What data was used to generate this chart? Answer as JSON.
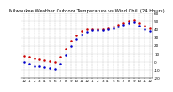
{
  "title": "Milwaukee Weather Outdoor Temperature vs Wind Chill (24 Hours)",
  "time_labels": [
    "12",
    "1",
    "2",
    "3",
    "4",
    "5",
    "6",
    "7",
    "8",
    "9",
    "10",
    "11",
    "12",
    "1",
    "2",
    "3",
    "4",
    "5",
    "6",
    "7",
    "8",
    "9",
    "10",
    "11",
    "12"
  ],
  "temp_values": [
    8,
    6,
    4,
    3,
    2,
    1,
    0,
    6,
    16,
    26,
    33,
    38,
    40,
    41,
    41,
    41,
    42,
    44,
    46,
    48,
    50,
    51,
    48,
    45,
    42
  ],
  "wind_chill": [
    0,
    -2,
    -5,
    -6,
    -7,
    -8,
    -9,
    -2,
    9,
    20,
    28,
    34,
    37,
    39,
    39,
    39,
    40,
    42,
    44,
    46,
    48,
    49,
    45,
    41,
    38
  ],
  "temp_color": "#cc0000",
  "wind_color": "#0000cc",
  "bg_color": "#ffffff",
  "plot_bg": "#ffffff",
  "grid_color": "#888888",
  "ylim_min": -20,
  "ylim_max": 60,
  "ytick_values": [
    -20,
    -10,
    0,
    10,
    20,
    30,
    40,
    50,
    60
  ],
  "ytick_labels": [
    "-20",
    "-10",
    "0",
    "10",
    "20",
    "30",
    "40",
    "50",
    "60"
  ],
  "title_fontsize": 3.8,
  "tick_fontsize": 3.0,
  "marker_size": 0.8
}
